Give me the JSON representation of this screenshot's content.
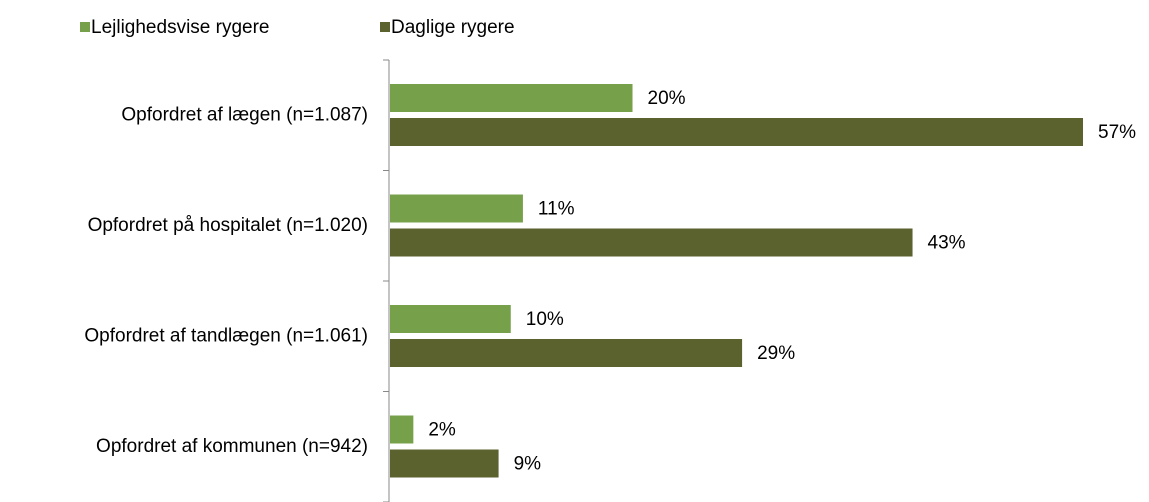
{
  "chart_data": {
    "type": "hbar",
    "categories": [
      "Opfordret af lægen (n=1.087)",
      "Opfordret på hospitalet (n=1.020)",
      "Opfordret af tandlægen (n=1.061)",
      "Opfordret af kommunen (n=942)"
    ],
    "series": [
      {
        "name": "Lejlighedsvise rygere",
        "color": "#77a04a",
        "values": [
          20,
          11,
          10,
          2
        ],
        "value_labels": [
          "20%",
          "11%",
          "10%",
          "2%"
        ]
      },
      {
        "name": "Daglige rygere",
        "color": "#5b622e",
        "values": [
          57,
          43,
          29,
          9
        ],
        "value_labels": [
          "57%",
          "43%",
          "29%",
          "9%"
        ]
      }
    ],
    "legend": "top"
  }
}
